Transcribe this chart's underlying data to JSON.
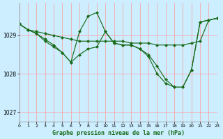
{
  "title": "Graphe pression niveau de la mer (hPa)",
  "bg_color": "#cceeff",
  "line_color": "#1a6b1a",
  "grid_color": "#ff9999",
  "x_min": 0,
  "x_max": 23,
  "y_min": 1026.75,
  "y_max": 1029.85,
  "y_ticks": [
    1027,
    1028,
    1029
  ],
  "curve1_x": [
    0,
    1,
    2,
    3,
    4,
    5,
    6,
    7,
    8,
    9,
    10,
    11,
    12,
    13,
    14,
    15,
    16,
    17,
    18,
    19,
    20,
    21,
    22,
    23
  ],
  "curve1_y": [
    1029.3,
    1029.15,
    1029.1,
    1029.05,
    1029.0,
    1028.95,
    1028.9,
    1028.85,
    1028.85,
    1028.85,
    1028.85,
    1028.85,
    1028.85,
    1028.8,
    1028.8,
    1028.8,
    1028.75,
    1028.75,
    1028.75,
    1028.75,
    1028.8,
    1028.85,
    1029.4,
    1029.45
  ],
  "curve2_x": [
    0,
    1,
    2,
    3,
    4,
    5,
    6,
    7,
    8,
    9,
    10,
    11,
    12,
    13,
    14,
    15,
    16,
    17,
    18,
    19,
    20,
    21,
    22,
    23
  ],
  "curve2_y": [
    1029.3,
    1029.15,
    1029.05,
    1028.85,
    1028.7,
    1028.55,
    1028.3,
    1029.1,
    1029.5,
    1029.6,
    1029.1,
    1028.8,
    1028.75,
    1028.75,
    1028.65,
    1028.5,
    1028.2,
    1027.85,
    1027.65,
    1027.65,
    1028.1,
    1029.35,
    1029.4,
    1029.45
  ],
  "curve3_x": [
    0,
    1,
    2,
    3,
    4,
    5,
    6,
    7,
    8,
    9,
    10,
    11,
    12,
    13,
    14,
    15,
    16,
    17,
    18,
    19,
    20,
    21,
    22,
    23
  ],
  "curve3_y": [
    1029.3,
    1029.15,
    1029.05,
    1028.9,
    1028.75,
    1028.55,
    1028.3,
    1028.5,
    1028.65,
    1028.7,
    1029.1,
    1028.8,
    1028.75,
    1028.75,
    1028.65,
    1028.45,
    1028.0,
    1027.75,
    1027.65,
    1027.65,
    1028.1,
    1029.35,
    1029.4,
    1029.45
  ]
}
